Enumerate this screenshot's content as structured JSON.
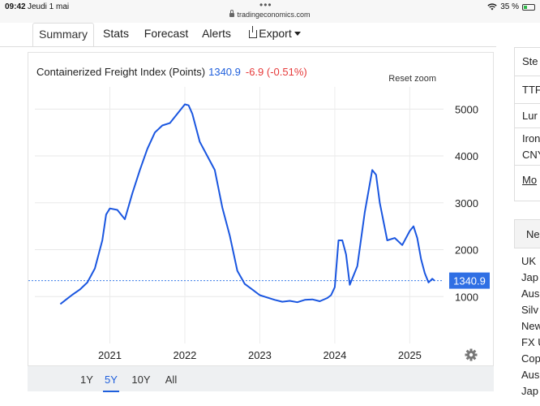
{
  "status_bar": {
    "time": "09:42",
    "date": "Jeudi 1 mai",
    "url": "tradingeconomics.com",
    "battery": "35 %",
    "battery_level": 0.35,
    "dots": "•••"
  },
  "tabs": [
    {
      "label": "Summary",
      "active": true
    },
    {
      "label": "Stats",
      "active": false
    },
    {
      "label": "Forecast",
      "active": false
    },
    {
      "label": "Alerts",
      "active": false
    },
    {
      "label": "Export",
      "active": false
    }
  ],
  "chart_header": {
    "title": "Containerized Freight Index (Points)",
    "value": "1340.9",
    "change": "-6.9 (-0.51%)"
  },
  "reset_zoom": "Reset zoom",
  "current_value_label": "1340.9",
  "range_buttons": [
    {
      "label": "1Y",
      "active": false
    },
    {
      "label": "5Y",
      "active": true
    },
    {
      "label": "10Y",
      "active": false
    },
    {
      "label": "All",
      "active": false
    }
  ],
  "sidebar": {
    "table_rows": [
      "Ste",
      "TTF",
      "Lur",
      "Iron",
      "CNY",
      "Mo"
    ],
    "news_header": "Ne",
    "news_items": [
      "UK",
      "Jap",
      "Aus",
      "Silv",
      "New",
      "FX U",
      "Cop",
      "Aus",
      "Jap"
    ]
  },
  "chart_data": {
    "type": "line",
    "title": "Containerized Freight Index (Points)",
    "ylim": [
      0,
      5300
    ],
    "yticks": [
      1000,
      2000,
      3000,
      4000,
      5000
    ],
    "xticks": [
      "2021",
      "2022",
      "2023",
      "2024",
      "2025"
    ],
    "grid": true,
    "current_value": 1340.9,
    "series": [
      {
        "x": [
          2020.34,
          2020.42,
          2020.5,
          2020.6,
          2020.7,
          2020.8,
          2020.9,
          2020.95,
          2021.0,
          2021.1,
          2021.2,
          2021.3,
          2021.4,
          2021.5,
          2021.6,
          2021.7,
          2021.8,
          2021.9,
          2022.0,
          2022.05,
          2022.1,
          2022.2,
          2022.3,
          2022.4,
          2022.5,
          2022.6,
          2022.7,
          2022.8,
          2022.9,
          2023.0,
          2023.1,
          2023.2,
          2023.3,
          2023.4,
          2023.5,
          2023.6,
          2023.7,
          2023.8,
          2023.9,
          2023.95,
          2024.0,
          2024.05,
          2024.1,
          2024.15,
          2024.2,
          2024.3,
          2024.4,
          2024.5,
          2024.55,
          2024.6,
          2024.7,
          2024.8,
          2024.9,
          2025.0,
          2025.05,
          2025.1,
          2025.15,
          2025.2,
          2025.25,
          2025.3,
          2025.33
        ],
        "y": [
          840,
          940,
          1040,
          1150,
          1300,
          1600,
          2200,
          2750,
          2880,
          2850,
          2650,
          3200,
          3700,
          4150,
          4500,
          4650,
          4700,
          4900,
          5100,
          5080,
          4900,
          4300,
          4000,
          3700,
          2900,
          2300,
          1550,
          1270,
          1150,
          1030,
          980,
          930,
          890,
          910,
          880,
          930,
          940,
          900,
          970,
          1030,
          1200,
          2200,
          2200,
          1900,
          1250,
          1650,
          2800,
          3700,
          3600,
          3000,
          2200,
          2250,
          2100,
          2400,
          2500,
          2250,
          1800,
          1500,
          1300,
          1380,
          1341
        ]
      }
    ]
  }
}
